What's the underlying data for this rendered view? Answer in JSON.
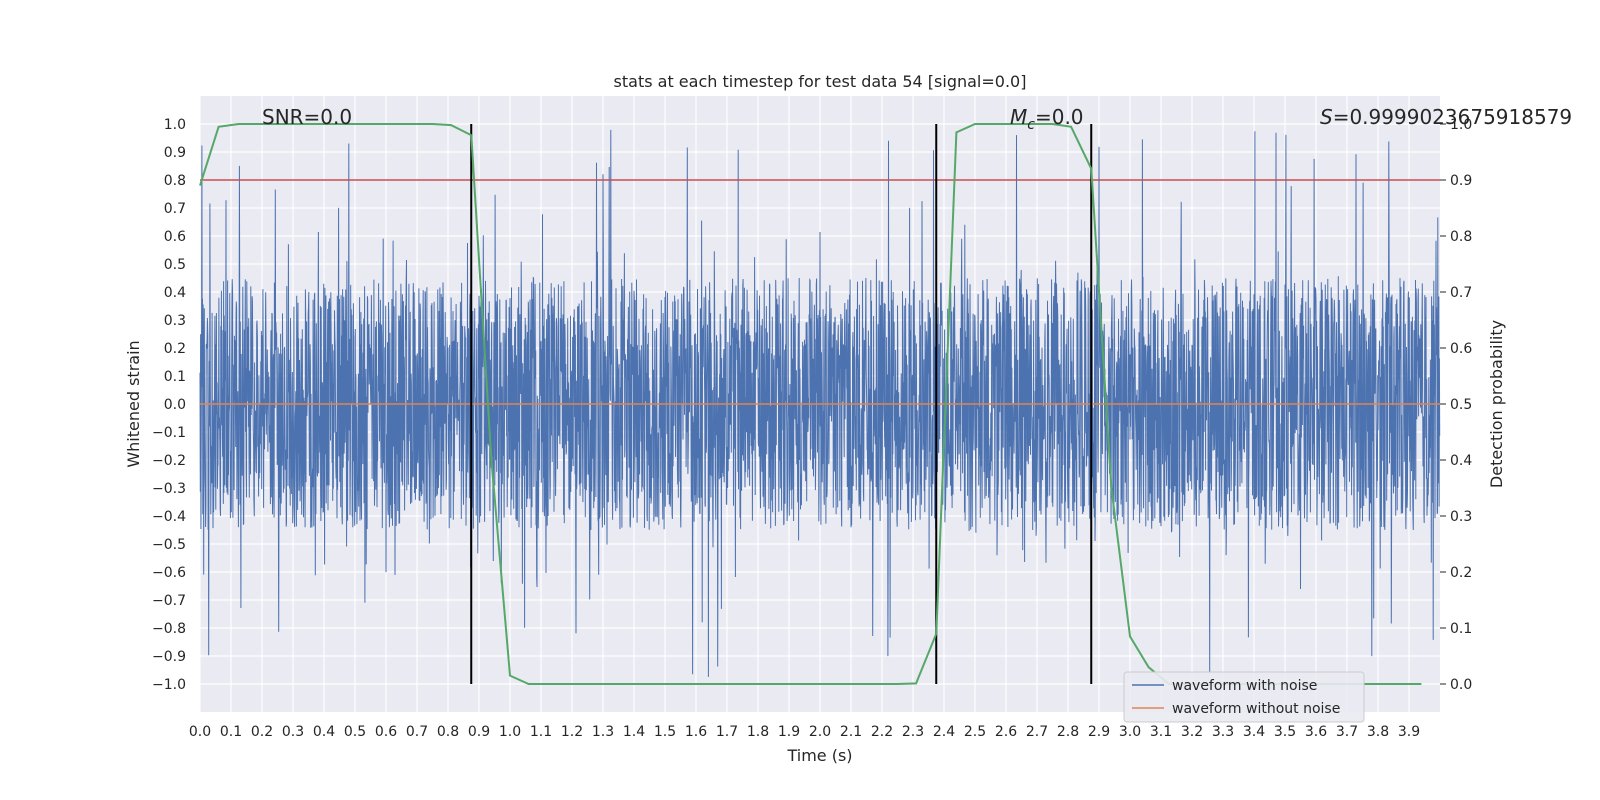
{
  "chart_data": {
    "type": "line",
    "title": "stats at each timestep for test data 54 [signal=0.0]",
    "xlabel": "Time (s)",
    "ylabel": "Whitened strain",
    "y2label": "Detection probability",
    "xlim": [
      0.0,
      4.0
    ],
    "ylim": [
      -1.1,
      1.1
    ],
    "y2lim": [
      -0.05,
      1.05
    ],
    "xticks": [
      "0.0",
      "0.1",
      "0.2",
      "0.3",
      "0.4",
      "0.5",
      "0.6",
      "0.7",
      "0.8",
      "0.9",
      "1.0",
      "1.1",
      "1.2",
      "1.3",
      "1.4",
      "1.5",
      "1.6",
      "1.7",
      "1.8",
      "1.9",
      "2.0",
      "2.1",
      "2.2",
      "2.3",
      "2.4",
      "2.5",
      "2.6",
      "2.7",
      "2.8",
      "2.9",
      "3.0",
      "3.1",
      "3.2",
      "3.3",
      "3.4",
      "3.5",
      "3.6",
      "3.7",
      "3.8",
      "3.9"
    ],
    "yticks": [
      "1.0",
      "0.9",
      "0.8",
      "0.7",
      "0.6",
      "0.5",
      "0.4",
      "0.3",
      "0.2",
      "0.1",
      "0.0",
      "-0.1",
      "-0.2",
      "-0.3",
      "-0.4",
      "-0.5",
      "-0.6",
      "-0.7",
      "-0.8",
      "-0.9",
      "-1.0"
    ],
    "y2ticks": [
      "1.0",
      "0.9",
      "0.8",
      "0.7",
      "0.6",
      "0.5",
      "0.4",
      "0.3",
      "0.2",
      "0.1",
      "0.0"
    ],
    "annotations": {
      "snr": "SNR=0.0",
      "mc_symbol": "M",
      "mc_sub": "c",
      "mc_value": "=0.0",
      "s_symbol": "S",
      "s_value": "=0.9999023675918579"
    },
    "threshold": {
      "y2": 0.9,
      "color": "#c44e52"
    },
    "vlines_x": [
      0.875,
      2.375,
      2.875
    ],
    "series": [
      {
        "name": "waveform with noise",
        "color": "#4c72b0",
        "style": "dense noise, amplitude mostly within ±0.6, peaks ~±1.0"
      },
      {
        "name": "waveform without noise",
        "color": "#dd8452",
        "x": [
          0.0,
          4.0
        ],
        "y": [
          0.0,
          0.0
        ]
      },
      {
        "name": "detection probability",
        "axis": "y2",
        "color": "#55a868",
        "x": [
          0.0,
          0.06,
          0.125,
          0.25,
          0.5,
          0.75,
          0.81,
          0.875,
          0.94,
          1.0,
          1.06,
          1.125,
          1.5,
          2.0,
          2.25,
          2.31,
          2.375,
          2.44,
          2.5,
          2.75,
          2.81,
          2.875,
          2.94,
          3.0,
          3.06,
          3.125,
          3.5,
          3.94
        ],
        "y": [
          0.89,
          0.995,
          1.0,
          1.0,
          1.0,
          1.0,
          0.998,
          0.98,
          0.4,
          0.015,
          0.0,
          0.0,
          0.0,
          0.0,
          0.0,
          0.001,
          0.09,
          0.985,
          1.0,
          1.0,
          0.995,
          0.92,
          0.35,
          0.085,
          0.03,
          0.0,
          0.0,
          0.0
        ]
      }
    ],
    "legend": {
      "position": "lower-right",
      "items": [
        "waveform with noise",
        "waveform without noise"
      ]
    }
  }
}
